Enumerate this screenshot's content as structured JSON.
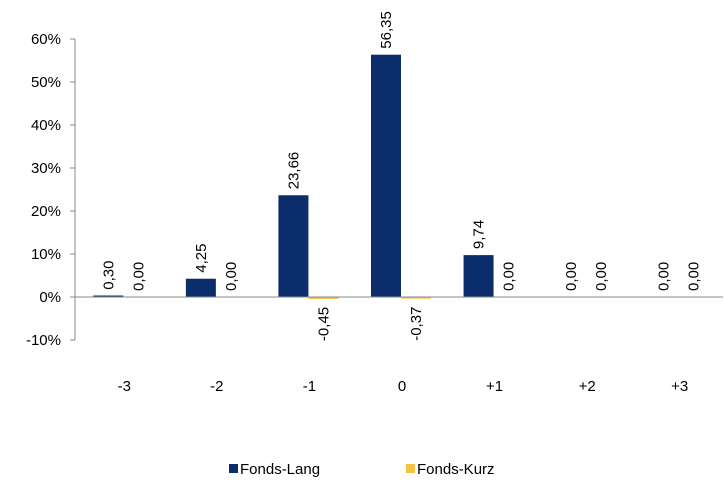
{
  "chart_data": {
    "type": "bar",
    "categories": [
      "-3",
      "-2",
      "-1",
      "0",
      "+1",
      "+2",
      "+3"
    ],
    "series": [
      {
        "name": "Fonds-Lang",
        "color": "#0b2d6b",
        "values": [
          0.3,
          4.25,
          23.66,
          56.35,
          9.74,
          0.0,
          0.0
        ],
        "labels": [
          "0,30",
          "4,25",
          "23,66",
          "56,35",
          "9,74",
          "0,00",
          "0,00"
        ]
      },
      {
        "name": "Fonds-Kurz",
        "color": "#f5c242",
        "values": [
          0.0,
          0.0,
          -0.45,
          -0.37,
          0.0,
          0.0,
          0.0
        ],
        "labels": [
          "0,00",
          "0,00",
          "-0,45",
          "-0,37",
          "0,00",
          "0,00",
          "0,00"
        ]
      }
    ],
    "y_ticks": [
      {
        "value": -10,
        "label": "-10%"
      },
      {
        "value": 0,
        "label": "0%"
      },
      {
        "value": 10,
        "label": "10%"
      },
      {
        "value": 20,
        "label": "20%"
      },
      {
        "value": 30,
        "label": "30%"
      },
      {
        "value": 40,
        "label": "40%"
      },
      {
        "value": 50,
        "label": "50%"
      },
      {
        "value": 60,
        "label": "60%"
      }
    ],
    "ylim": [
      -10,
      60
    ],
    "grid": false,
    "legend": "bottom-center",
    "title": "",
    "xlabel": "",
    "ylabel": ""
  }
}
